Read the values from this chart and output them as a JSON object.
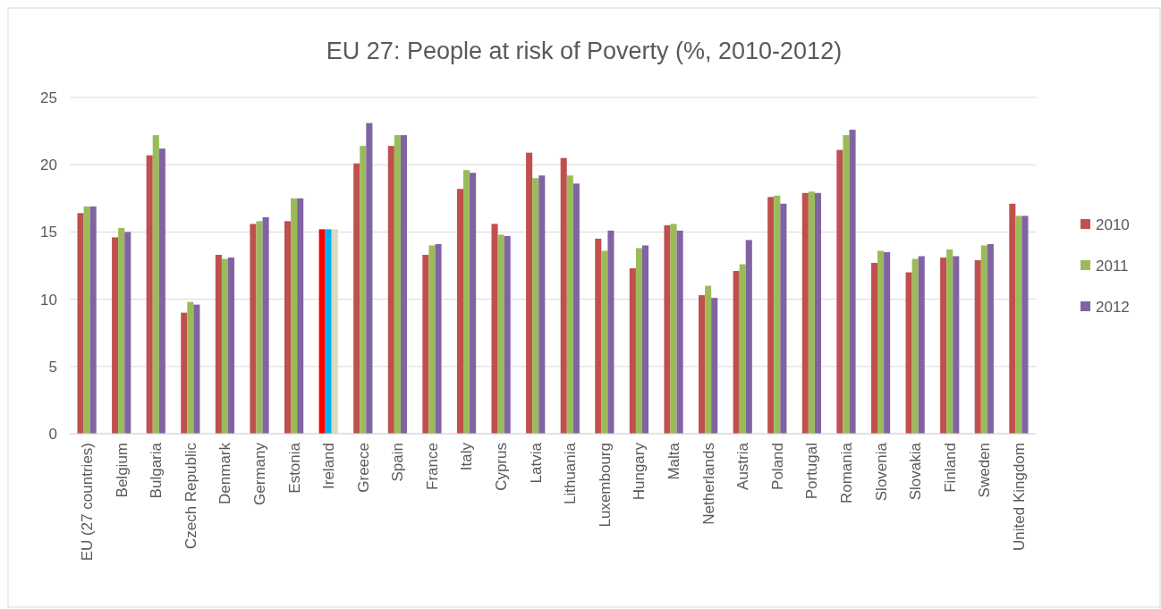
{
  "chart_data": {
    "type": "bar",
    "title": "EU 27: People at risk of Poverty (%, 2010-2012)",
    "categories": [
      "EU (27 countries)",
      "Belgium",
      "Bulgaria",
      "Czech Republic",
      "Denmark",
      "Germany",
      "Estonia",
      "Ireland",
      "Greece",
      "Spain",
      "France",
      "Italy",
      "Cyprus",
      "Latvia",
      "Lithuania",
      "Luxembourg",
      "Hungary",
      "Malta",
      "Netherlands",
      "Austria",
      "Poland",
      "Portugal",
      "Romania",
      "Slovenia",
      "Slovakia",
      "Finland",
      "Sweden",
      "United Kingdom"
    ],
    "series": [
      {
        "name": "2010",
        "color": "#c0504d",
        "colors": [
          "#c0504d",
          "#c0504d",
          "#c0504d",
          "#c0504d",
          "#c0504d",
          "#c0504d",
          "#c0504d",
          "#ff0000",
          "#c0504d",
          "#c0504d",
          "#c0504d",
          "#c0504d",
          "#c0504d",
          "#c0504d",
          "#c0504d",
          "#c0504d",
          "#c0504d",
          "#c0504d",
          "#c0504d",
          "#c0504d",
          "#c0504d",
          "#c0504d",
          "#c0504d",
          "#c0504d",
          "#c0504d",
          "#c0504d",
          "#c0504d",
          "#c0504d"
        ],
        "values": [
          16.4,
          14.6,
          20.7,
          9.0,
          13.3,
          15.6,
          15.8,
          15.2,
          20.1,
          21.4,
          13.3,
          18.2,
          15.6,
          20.9,
          20.5,
          14.5,
          12.3,
          15.5,
          10.3,
          12.1,
          17.6,
          17.9,
          21.1,
          12.7,
          12.0,
          13.1,
          12.9,
          17.1
        ]
      },
      {
        "name": "2011",
        "color": "#9bbb59",
        "colors": [
          "#9bbb59",
          "#9bbb59",
          "#9bbb59",
          "#9bbb59",
          "#9bbb59",
          "#9bbb59",
          "#9bbb59",
          "#00b0f0",
          "#9bbb59",
          "#9bbb59",
          "#9bbb59",
          "#9bbb59",
          "#9bbb59",
          "#9bbb59",
          "#9bbb59",
          "#9bbb59",
          "#9bbb59",
          "#9bbb59",
          "#9bbb59",
          "#9bbb59",
          "#9bbb59",
          "#9bbb59",
          "#9bbb59",
          "#9bbb59",
          "#9bbb59",
          "#9bbb59",
          "#9bbb59",
          "#9bbb59"
        ],
        "values": [
          16.9,
          15.3,
          22.2,
          9.8,
          13.0,
          15.8,
          17.5,
          15.2,
          21.4,
          22.2,
          14.0,
          19.6,
          14.8,
          19.0,
          19.2,
          13.6,
          13.8,
          15.6,
          11.0,
          12.6,
          17.7,
          18.0,
          22.2,
          13.6,
          13.0,
          13.7,
          14.0,
          16.2
        ]
      },
      {
        "name": "2012",
        "color": "#8064a2",
        "colors": [
          "#8064a2",
          "#8064a2",
          "#8064a2",
          "#8064a2",
          "#8064a2",
          "#8064a2",
          "#8064a2",
          "#ddd9c3",
          "#8064a2",
          "#8064a2",
          "#8064a2",
          "#8064a2",
          "#8064a2",
          "#8064a2",
          "#8064a2",
          "#8064a2",
          "#8064a2",
          "#8064a2",
          "#8064a2",
          "#8064a2",
          "#8064a2",
          "#8064a2",
          "#8064a2",
          "#8064a2",
          "#8064a2",
          "#8064a2",
          "#8064a2",
          "#8064a2"
        ],
        "values": [
          16.9,
          15.0,
          21.2,
          9.6,
          13.1,
          16.1,
          17.5,
          15.2,
          23.1,
          22.2,
          14.1,
          19.4,
          14.7,
          19.2,
          18.6,
          15.1,
          14.0,
          15.1,
          10.1,
          14.4,
          17.1,
          17.9,
          22.6,
          13.5,
          13.2,
          13.2,
          14.1,
          16.2
        ]
      }
    ],
    "ylim": [
      0,
      25
    ],
    "yticks": [
      0,
      5,
      10,
      15,
      20,
      25
    ],
    "grid": "y",
    "legend": "right"
  }
}
